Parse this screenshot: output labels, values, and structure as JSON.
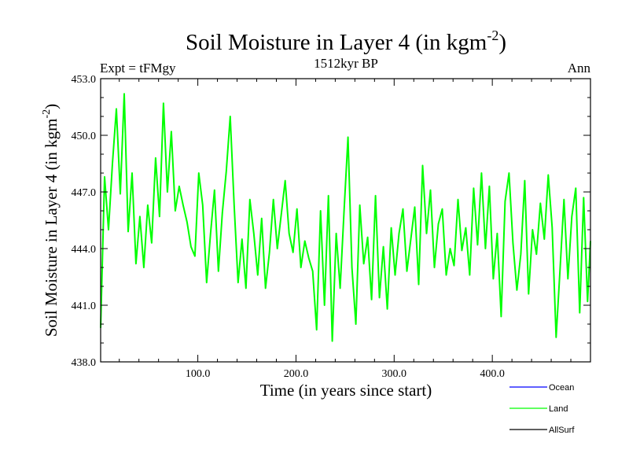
{
  "chart_data": {
    "type": "line",
    "title": "Soil Moisture in Layer 4 (in kgm",
    "title_sup": "-2",
    "title_close": ")",
    "subtitle_left": "Expt = tFMgy",
    "subtitle_center": "1512kyr BP",
    "subtitle_right": "Ann",
    "xlabel": "Time (in years since start)",
    "ylabel": "Soil Moisture in Layer 4 (in kgm",
    "ylabel_sup": "-2",
    "ylabel_close": ")",
    "xlim": [
      1,
      500
    ],
    "ylim": [
      438.0,
      453.0
    ],
    "xticks": [
      100,
      200,
      300,
      400
    ],
    "xtick_labels": [
      "100.0",
      "200.0",
      "300.0",
      "400.0"
    ],
    "yticks": [
      438,
      441,
      444,
      447,
      450,
      453
    ],
    "ytick_labels": [
      "438.0",
      "441.0",
      "444.0",
      "447.0",
      "450.0",
      "453.0"
    ],
    "legend": [
      {
        "name": "Ocean",
        "color": "#0000ff"
      },
      {
        "name": "Land",
        "color": "#00ff00"
      },
      {
        "name": "AllSurf",
        "color": "#000000"
      }
    ],
    "series": [
      {
        "name": "Land",
        "color": "#00ff00",
        "x": [
          1,
          5,
          9,
          13,
          17,
          21,
          25,
          29,
          33,
          37,
          41,
          45,
          49,
          53,
          57,
          61,
          65,
          69,
          73,
          77,
          81,
          85,
          89,
          93,
          97,
          101,
          105,
          109,
          113,
          117,
          121,
          125,
          129,
          133,
          137,
          141,
          145,
          149,
          153,
          157,
          161,
          165,
          169,
          173,
          177,
          181,
          185,
          189,
          193,
          197,
          201,
          205,
          209,
          213,
          217,
          221,
          225,
          229,
          233,
          237,
          241,
          245,
          249,
          253,
          257,
          261,
          265,
          269,
          273,
          277,
          281,
          285,
          289,
          293,
          297,
          301,
          305,
          309,
          313,
          317,
          321,
          325,
          329,
          333,
          337,
          341,
          345,
          349,
          353,
          357,
          361,
          365,
          369,
          373,
          377,
          381,
          385,
          389,
          393,
          397,
          401,
          405,
          409,
          413,
          417,
          421,
          425,
          429,
          433,
          437,
          441,
          445,
          449,
          453,
          457,
          461,
          465,
          469,
          473,
          477,
          481,
          485,
          489,
          493,
          497,
          500
        ],
        "values": [
          439.8,
          447.8,
          445.0,
          448.5,
          451.4,
          446.9,
          452.2,
          444.9,
          448.0,
          443.2,
          445.7,
          443.0,
          446.3,
          444.3,
          448.8,
          445.7,
          451.7,
          447.0,
          450.2,
          446.0,
          447.3,
          446.3,
          445.4,
          444.1,
          443.6,
          448.0,
          446.3,
          442.2,
          444.8,
          447.1,
          442.8,
          445.9,
          448.1,
          451.0,
          446.3,
          442.2,
          444.5,
          441.9,
          446.6,
          444.8,
          442.6,
          445.6,
          441.9,
          443.8,
          446.6,
          444.0,
          445.8,
          447.6,
          444.8,
          443.8,
          446.1,
          443.0,
          444.4,
          443.5,
          442.8,
          439.7,
          446.0,
          441.0,
          446.8,
          439.1,
          444.8,
          441.9,
          446.0,
          449.9,
          443.0,
          440.0,
          446.3,
          443.2,
          444.6,
          441.3,
          446.8,
          441.4,
          444.1,
          440.8,
          445.1,
          442.6,
          444.8,
          446.1,
          442.8,
          444.5,
          446.2,
          442.1,
          448.4,
          444.8,
          447.1,
          443.0,
          445.3,
          446.1,
          442.6,
          444.0,
          443.1,
          446.6,
          443.9,
          445.1,
          442.6,
          447.2,
          444.2,
          448.0,
          444.0,
          447.3,
          442.4,
          444.8,
          440.4,
          446.5,
          448.0,
          444.3,
          441.8,
          443.7,
          447.6,
          441.6,
          445.0,
          443.7,
          446.4,
          444.5,
          447.9,
          445.1,
          439.3,
          442.9,
          446.6,
          442.4,
          445.7,
          447.2,
          440.6,
          446.7,
          441.2,
          444.4
        ]
      }
    ]
  }
}
